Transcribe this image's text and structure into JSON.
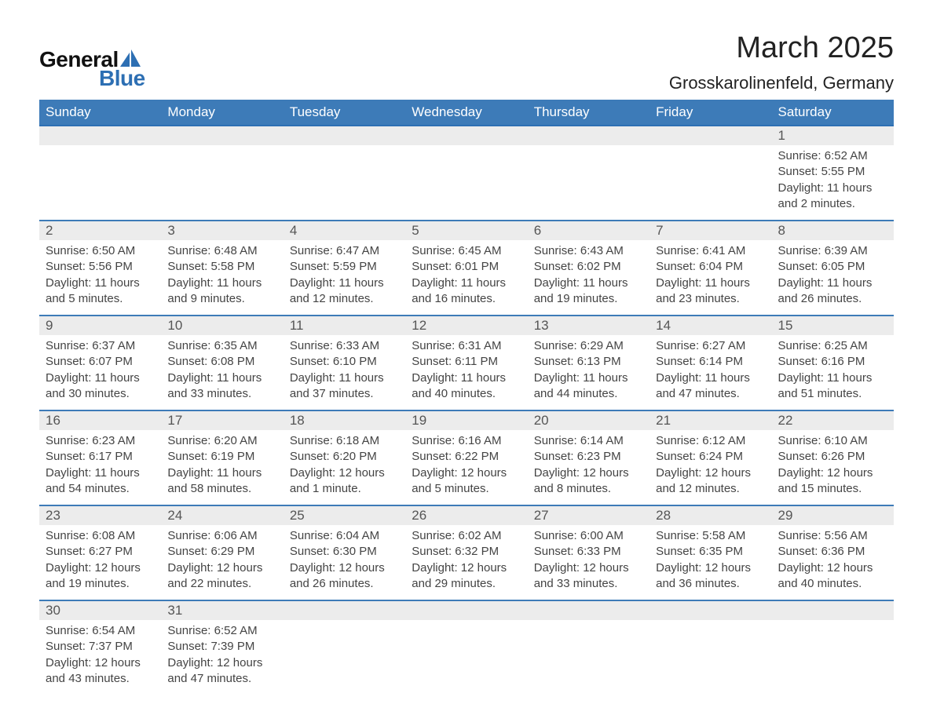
{
  "logo": {
    "general": "General",
    "blue": "Blue",
    "sail_color": "#2d6fb3"
  },
  "title": {
    "month": "March 2025",
    "location": "Grosskarolinenfeld, Germany"
  },
  "colors": {
    "header_bg": "#3d7bb8",
    "header_text": "#ffffff",
    "row_divider": "#3d7bb8",
    "daynum_bg": "#ececec",
    "body_text": "#444444",
    "page_bg": "#ffffff"
  },
  "typography": {
    "title_fontsize": 38,
    "location_fontsize": 22,
    "header_fontsize": 17,
    "daynum_fontsize": 17,
    "detail_fontsize": 15
  },
  "layout": {
    "columns": 7,
    "rows": 6,
    "aspect_w": 1188,
    "aspect_h": 918
  },
  "dow": [
    "Sunday",
    "Monday",
    "Tuesday",
    "Wednesday",
    "Thursday",
    "Friday",
    "Saturday"
  ],
  "weeks": [
    [
      null,
      null,
      null,
      null,
      null,
      null,
      {
        "n": "1",
        "sr": "Sunrise: 6:52 AM",
        "ss": "Sunset: 5:55 PM",
        "d1": "Daylight: 11 hours",
        "d2": "and 2 minutes."
      }
    ],
    [
      {
        "n": "2",
        "sr": "Sunrise: 6:50 AM",
        "ss": "Sunset: 5:56 PM",
        "d1": "Daylight: 11 hours",
        "d2": "and 5 minutes."
      },
      {
        "n": "3",
        "sr": "Sunrise: 6:48 AM",
        "ss": "Sunset: 5:58 PM",
        "d1": "Daylight: 11 hours",
        "d2": "and 9 minutes."
      },
      {
        "n": "4",
        "sr": "Sunrise: 6:47 AM",
        "ss": "Sunset: 5:59 PM",
        "d1": "Daylight: 11 hours",
        "d2": "and 12 minutes."
      },
      {
        "n": "5",
        "sr": "Sunrise: 6:45 AM",
        "ss": "Sunset: 6:01 PM",
        "d1": "Daylight: 11 hours",
        "d2": "and 16 minutes."
      },
      {
        "n": "6",
        "sr": "Sunrise: 6:43 AM",
        "ss": "Sunset: 6:02 PM",
        "d1": "Daylight: 11 hours",
        "d2": "and 19 minutes."
      },
      {
        "n": "7",
        "sr": "Sunrise: 6:41 AM",
        "ss": "Sunset: 6:04 PM",
        "d1": "Daylight: 11 hours",
        "d2": "and 23 minutes."
      },
      {
        "n": "8",
        "sr": "Sunrise: 6:39 AM",
        "ss": "Sunset: 6:05 PM",
        "d1": "Daylight: 11 hours",
        "d2": "and 26 minutes."
      }
    ],
    [
      {
        "n": "9",
        "sr": "Sunrise: 6:37 AM",
        "ss": "Sunset: 6:07 PM",
        "d1": "Daylight: 11 hours",
        "d2": "and 30 minutes."
      },
      {
        "n": "10",
        "sr": "Sunrise: 6:35 AM",
        "ss": "Sunset: 6:08 PM",
        "d1": "Daylight: 11 hours",
        "d2": "and 33 minutes."
      },
      {
        "n": "11",
        "sr": "Sunrise: 6:33 AM",
        "ss": "Sunset: 6:10 PM",
        "d1": "Daylight: 11 hours",
        "d2": "and 37 minutes."
      },
      {
        "n": "12",
        "sr": "Sunrise: 6:31 AM",
        "ss": "Sunset: 6:11 PM",
        "d1": "Daylight: 11 hours",
        "d2": "and 40 minutes."
      },
      {
        "n": "13",
        "sr": "Sunrise: 6:29 AM",
        "ss": "Sunset: 6:13 PM",
        "d1": "Daylight: 11 hours",
        "d2": "and 44 minutes."
      },
      {
        "n": "14",
        "sr": "Sunrise: 6:27 AM",
        "ss": "Sunset: 6:14 PM",
        "d1": "Daylight: 11 hours",
        "d2": "and 47 minutes."
      },
      {
        "n": "15",
        "sr": "Sunrise: 6:25 AM",
        "ss": "Sunset: 6:16 PM",
        "d1": "Daylight: 11 hours",
        "d2": "and 51 minutes."
      }
    ],
    [
      {
        "n": "16",
        "sr": "Sunrise: 6:23 AM",
        "ss": "Sunset: 6:17 PM",
        "d1": "Daylight: 11 hours",
        "d2": "and 54 minutes."
      },
      {
        "n": "17",
        "sr": "Sunrise: 6:20 AM",
        "ss": "Sunset: 6:19 PM",
        "d1": "Daylight: 11 hours",
        "d2": "and 58 minutes."
      },
      {
        "n": "18",
        "sr": "Sunrise: 6:18 AM",
        "ss": "Sunset: 6:20 PM",
        "d1": "Daylight: 12 hours",
        "d2": "and 1 minute."
      },
      {
        "n": "19",
        "sr": "Sunrise: 6:16 AM",
        "ss": "Sunset: 6:22 PM",
        "d1": "Daylight: 12 hours",
        "d2": "and 5 minutes."
      },
      {
        "n": "20",
        "sr": "Sunrise: 6:14 AM",
        "ss": "Sunset: 6:23 PM",
        "d1": "Daylight: 12 hours",
        "d2": "and 8 minutes."
      },
      {
        "n": "21",
        "sr": "Sunrise: 6:12 AM",
        "ss": "Sunset: 6:24 PM",
        "d1": "Daylight: 12 hours",
        "d2": "and 12 minutes."
      },
      {
        "n": "22",
        "sr": "Sunrise: 6:10 AM",
        "ss": "Sunset: 6:26 PM",
        "d1": "Daylight: 12 hours",
        "d2": "and 15 minutes."
      }
    ],
    [
      {
        "n": "23",
        "sr": "Sunrise: 6:08 AM",
        "ss": "Sunset: 6:27 PM",
        "d1": "Daylight: 12 hours",
        "d2": "and 19 minutes."
      },
      {
        "n": "24",
        "sr": "Sunrise: 6:06 AM",
        "ss": "Sunset: 6:29 PM",
        "d1": "Daylight: 12 hours",
        "d2": "and 22 minutes."
      },
      {
        "n": "25",
        "sr": "Sunrise: 6:04 AM",
        "ss": "Sunset: 6:30 PM",
        "d1": "Daylight: 12 hours",
        "d2": "and 26 minutes."
      },
      {
        "n": "26",
        "sr": "Sunrise: 6:02 AM",
        "ss": "Sunset: 6:32 PM",
        "d1": "Daylight: 12 hours",
        "d2": "and 29 minutes."
      },
      {
        "n": "27",
        "sr": "Sunrise: 6:00 AM",
        "ss": "Sunset: 6:33 PM",
        "d1": "Daylight: 12 hours",
        "d2": "and 33 minutes."
      },
      {
        "n": "28",
        "sr": "Sunrise: 5:58 AM",
        "ss": "Sunset: 6:35 PM",
        "d1": "Daylight: 12 hours",
        "d2": "and 36 minutes."
      },
      {
        "n": "29",
        "sr": "Sunrise: 5:56 AM",
        "ss": "Sunset: 6:36 PM",
        "d1": "Daylight: 12 hours",
        "d2": "and 40 minutes."
      }
    ],
    [
      {
        "n": "30",
        "sr": "Sunrise: 6:54 AM",
        "ss": "Sunset: 7:37 PM",
        "d1": "Daylight: 12 hours",
        "d2": "and 43 minutes."
      },
      {
        "n": "31",
        "sr": "Sunrise: 6:52 AM",
        "ss": "Sunset: 7:39 PM",
        "d1": "Daylight: 12 hours",
        "d2": "and 47 minutes."
      },
      null,
      null,
      null,
      null,
      null
    ]
  ]
}
